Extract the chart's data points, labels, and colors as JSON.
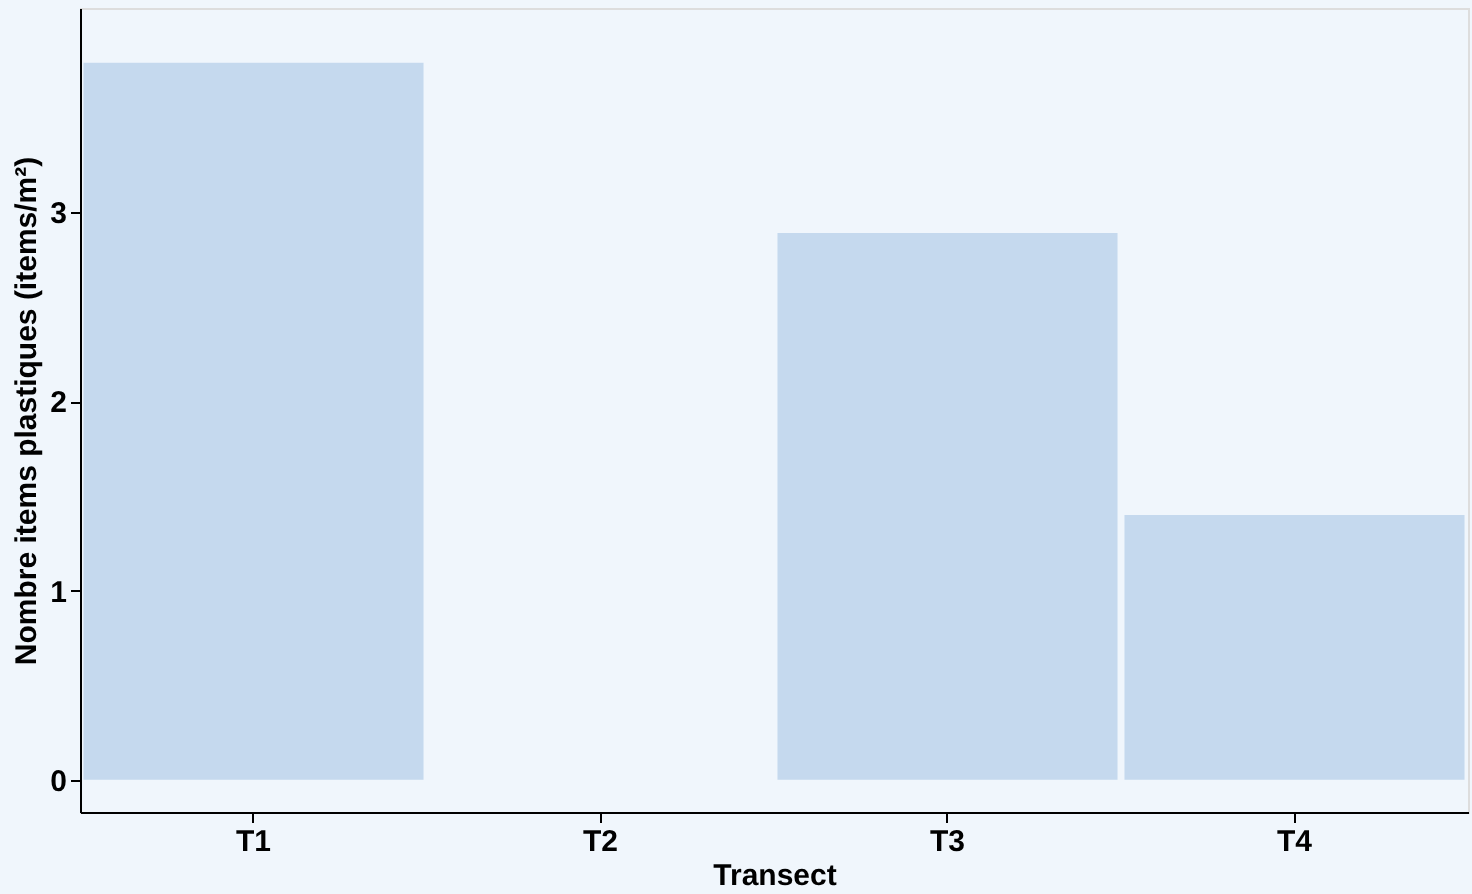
{
  "chart_data": {
    "type": "bar",
    "xlabel": "Transect",
    "ylabel": "Nombre items plastiques (items/m²)",
    "categories": [
      "T1",
      "T2",
      "T3",
      "T4"
    ],
    "values": [
      3.79,
      0,
      2.89,
      1.4
    ],
    "color": "#c5d9ee",
    "ylim": [
      -0.17,
      4.08
    ],
    "yticks": [
      0,
      1,
      2,
      3
    ],
    "grid": false
  }
}
